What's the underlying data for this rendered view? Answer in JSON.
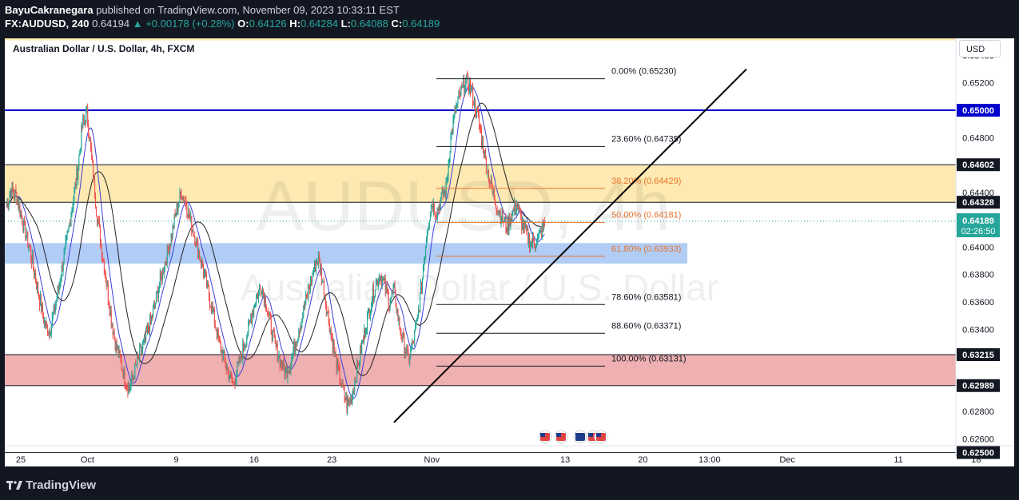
{
  "header": {
    "author": "BayuCakranegara",
    "published_text": "published on TradingView.com, November 09, 2023 10:33:11 EST",
    "symbol": "FX:AUDUSD, 240",
    "last": "0.64194",
    "change": "▲ +0.00178 (+0.28%)",
    "o_label": "O:",
    "o": "0.64126",
    "h_label": "H:",
    "h": "0.64284",
    "l_label": "L:",
    "l": "0.64088",
    "c_label": "C:",
    "c": "0.64189"
  },
  "chart_title": "Australian Dollar / U.S. Dollar, 4h, FXCM",
  "watermark": {
    "big": "AUDUSD, 4h",
    "small": "Australian Dollar / U.S. Dollar"
  },
  "currency_button": "USD",
  "footer": {
    "brand": "TradingView"
  },
  "colors": {
    "up": "#26a69a",
    "down": "#ef5350",
    "support": "#0000cc",
    "yellow_zone": "#fde7a8",
    "blue_zone": "#a8c8f5",
    "red_zone": "#eca7a7",
    "fib_orange": "#e8732b",
    "ma_blue": "#3d3dd8",
    "ma_black": "#222222",
    "price_label": "#26a69a"
  },
  "chart_data": {
    "type": "candlestick",
    "title": "Australian Dollar / U.S. Dollar, 4h, FXCM",
    "y_range": [
      0.6248,
      0.6556
    ],
    "y_ticks": [
      "0.65400",
      "0.65200",
      "0.64800",
      "0.64400",
      "0.64000",
      "0.63800",
      "0.63600",
      "0.63400",
      "0.62800",
      "0.62600"
    ],
    "x_ticks": [
      {
        "label": "25",
        "day": 0
      },
      {
        "label": "Oct",
        "day": 6
      },
      {
        "label": "9",
        "day": 14
      },
      {
        "label": "16",
        "day": 21
      },
      {
        "label": "23",
        "day": 28
      },
      {
        "label": "Nov",
        "day": 37
      },
      {
        "label": "13",
        "day": 49
      },
      {
        "label": "20",
        "day": 56
      },
      {
        "label": "13:00",
        "day": 62
      },
      {
        "label": "Dec",
        "day": 69
      },
      {
        "label": "11",
        "day": 79
      },
      {
        "label": "18",
        "day": 86
      }
    ],
    "horizontal_levels": [
      {
        "price": 0.65,
        "label": "0.65000",
        "color": "#0000cc"
      },
      {
        "price": 0.64602,
        "label": "0.64602",
        "color": "#131722"
      },
      {
        "price": 0.64328,
        "label": "0.64328",
        "color": "#131722"
      },
      {
        "price": 0.63215,
        "label": "0.63215",
        "color": "#131722"
      },
      {
        "price": 0.62989,
        "label": "0.62989",
        "color": "#131722"
      },
      {
        "price": 0.625,
        "label": "0.62500",
        "color": "#131722"
      }
    ],
    "current_price": {
      "price": 0.64189,
      "label": "0.64189",
      "countdown": "02:26:50"
    },
    "zones": [
      {
        "name": "yellow",
        "from": 0.64328,
        "to": 0.64602
      },
      {
        "name": "blue",
        "from": 0.6388,
        "to": 0.6403
      },
      {
        "name": "red",
        "from": 0.62989,
        "to": 0.63215
      },
      {
        "name": "top-yellow",
        "from": 0.6551,
        "to": 0.6556
      }
    ],
    "fibonacci": [
      {
        "ratio": "0.00%",
        "price": 0.6523,
        "label": "0.00% (0.65230)"
      },
      {
        "ratio": "23.60%",
        "price": 0.64735,
        "label": "23.60% (0.64735)"
      },
      {
        "ratio": "38.20%",
        "price": 0.64429,
        "label": "38.20% (0.64429)"
      },
      {
        "ratio": "50.00%",
        "price": 0.64181,
        "label": "50.00% (0.64181)"
      },
      {
        "ratio": "61.80%",
        "price": 0.63933,
        "label": "61.80% (0.63933)"
      },
      {
        "ratio": "78.60%",
        "price": 0.63581,
        "label": "78.60% (0.63581)"
      },
      {
        "ratio": "88.60%",
        "price": 0.63371,
        "label": "88.60% (0.63371)"
      },
      {
        "ratio": "100.00%",
        "price": 0.63131,
        "label": "100.00% (0.63131)"
      }
    ],
    "trendline": [
      {
        "day": 31,
        "price": 0.6272
      },
      {
        "day": 50.5,
        "price": 0.653
      }
    ],
    "series_close": [
      0.643,
      0.6442,
      0.6438,
      0.6425,
      0.641,
      0.6398,
      0.638,
      0.6362,
      0.6345,
      0.6338,
      0.6352,
      0.637,
      0.639,
      0.641,
      0.6432,
      0.6455,
      0.6488,
      0.6498,
      0.6465,
      0.6428,
      0.6402,
      0.6378,
      0.6352,
      0.633,
      0.6318,
      0.6305,
      0.6296,
      0.6308,
      0.632,
      0.6328,
      0.634,
      0.6352,
      0.6368,
      0.6382,
      0.6396,
      0.641,
      0.6428,
      0.644,
      0.6432,
      0.6418,
      0.6405,
      0.6392,
      0.6378,
      0.6362,
      0.6346,
      0.633,
      0.6318,
      0.6308,
      0.63,
      0.6312,
      0.6325,
      0.6338,
      0.6352,
      0.6365,
      0.6372,
      0.6358,
      0.634,
      0.6326,
      0.6316,
      0.6308,
      0.6315,
      0.6328,
      0.6342,
      0.6356,
      0.637,
      0.6384,
      0.6392,
      0.6372,
      0.635,
      0.633,
      0.6312,
      0.6298,
      0.6285,
      0.629,
      0.6308,
      0.6325,
      0.6342,
      0.6358,
      0.6372,
      0.638,
      0.6372,
      0.636,
      0.6368,
      0.6345,
      0.633,
      0.6318,
      0.633,
      0.6348,
      0.6378,
      0.6415,
      0.6432,
      0.6425,
      0.6436,
      0.6442,
      0.648,
      0.65,
      0.6512,
      0.652,
      0.6518,
      0.6505,
      0.649,
      0.647,
      0.6452,
      0.6438,
      0.6428,
      0.642,
      0.6415,
      0.6425,
      0.6432,
      0.6418,
      0.641,
      0.6402,
      0.6405,
      0.641,
      0.6418
    ]
  }
}
